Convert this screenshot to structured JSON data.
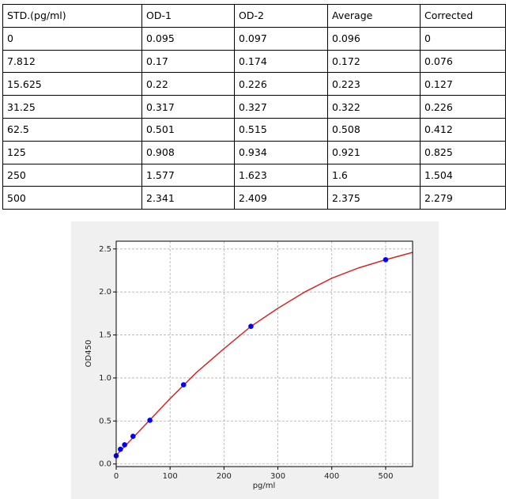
{
  "table": {
    "header": [
      "STD.(pg/ml)",
      "OD-1",
      "OD-2",
      "Average",
      "Corrected"
    ],
    "rows": [
      [
        "0",
        "0.095",
        "0.097",
        "0.096",
        "0"
      ],
      [
        "7.812",
        "0.17",
        "0.174",
        "0.172",
        "0.076"
      ],
      [
        "15.625",
        "0.22",
        "0.226",
        "0.223",
        "0.127"
      ],
      [
        "31.25",
        "0.317",
        "0.327",
        "0.322",
        "0.226"
      ],
      [
        "62.5",
        "0.501",
        "0.515",
        "0.508",
        "0.412"
      ],
      [
        "125",
        "0.908",
        "0.934",
        "0.921",
        "0.825"
      ],
      [
        "250",
        "1.577",
        "1.623",
        "1.6",
        "1.504"
      ],
      [
        "500",
        "2.341",
        "2.409",
        "2.375",
        "2.279"
      ]
    ]
  },
  "chart_data": {
    "type": "scatter",
    "xlabel": "pg/ml",
    "ylabel": "OD450",
    "xlim": [
      0,
      550
    ],
    "ylim": [
      -0.03,
      2.59
    ],
    "xticks": [
      0,
      100,
      200,
      300,
      400,
      500
    ],
    "yticks": [
      {
        "value": 0,
        "label": "0.0"
      },
      0.5,
      {
        "value": 1,
        "label": "1.0"
      },
      1.5,
      {
        "value": 2,
        "label": "2.0"
      },
      2.5
    ],
    "grid": true,
    "series": [
      {
        "style": "line",
        "color": "#d62728",
        "x": [
          0,
          50,
          100,
          150,
          200,
          250,
          300,
          350,
          400,
          450,
          500,
          550
        ],
        "values": [
          0.1,
          0.43,
          0.76,
          1.07,
          1.34,
          1.6,
          1.81,
          2.0,
          2.16,
          2.28,
          2.375,
          2.46
        ]
      },
      {
        "style": "points",
        "color": "#0000ff",
        "x": [
          0,
          7.812,
          15.625,
          31.25,
          62.5,
          125,
          250,
          500
        ],
        "values": [
          0.096,
          0.172,
          0.223,
          0.322,
          0.508,
          0.921,
          1.6,
          2.375
        ]
      }
    ]
  }
}
